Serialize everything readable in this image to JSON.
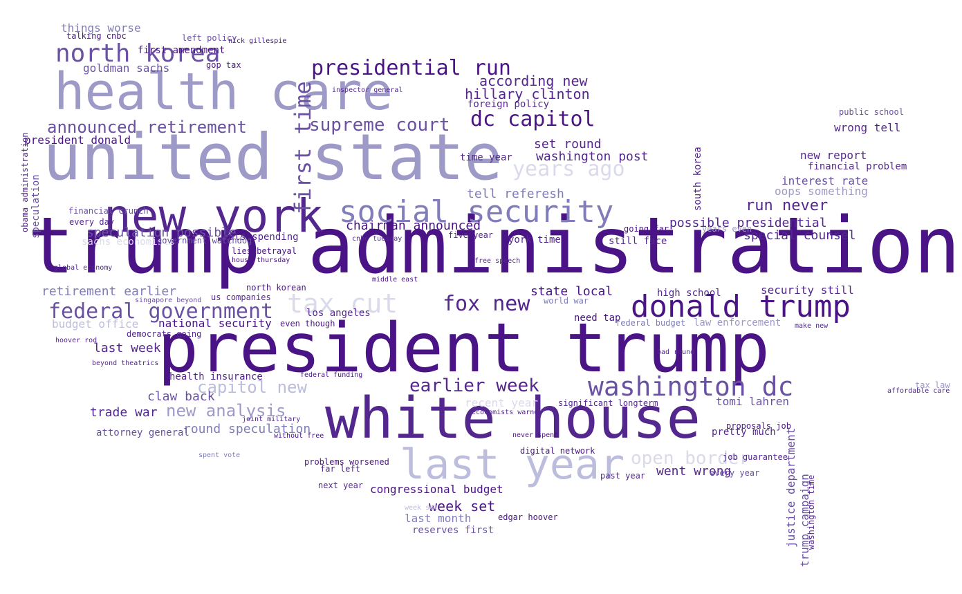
{
  "palette": {
    "dark": "#4a1486",
    "deep": "#54278f",
    "mid": "#6a51a3",
    "soft": "#807dba",
    "light": "#9e9ac8",
    "pale": "#bcbddc",
    "faint": "#dadaeb"
  },
  "words": [
    {
      "text": "trump administration"
    },
    {
      "text": "president trump"
    },
    {
      "text": "united state"
    },
    {
      "text": "health care"
    },
    {
      "text": "white house"
    },
    {
      "text": "new york"
    },
    {
      "text": "social security"
    },
    {
      "text": "donald trump"
    },
    {
      "text": "federal government"
    },
    {
      "text": "last year"
    },
    {
      "text": "north korea"
    },
    {
      "text": "washington dc"
    },
    {
      "text": "presidential run"
    },
    {
      "text": "dc capitol"
    },
    {
      "text": "supreme court"
    },
    {
      "text": "announced retirement"
    },
    {
      "text": "first time"
    },
    {
      "text": "fox new"
    },
    {
      "text": "tax cut"
    },
    {
      "text": "years ago"
    },
    {
      "text": "earlier week"
    },
    {
      "text": "new analysis"
    },
    {
      "text": "open border"
    },
    {
      "text": "capitol new"
    },
    {
      "text": "round speculation"
    },
    {
      "text": "possible presidential"
    },
    {
      "text": "run never"
    },
    {
      "text": "chairman announced"
    },
    {
      "text": "according new"
    },
    {
      "text": "hillary clinton"
    },
    {
      "text": "set round"
    },
    {
      "text": "washington post"
    },
    {
      "text": "tell referesh"
    },
    {
      "text": "goldman sachs"
    },
    {
      "text": "president donald"
    },
    {
      "text": "week set"
    },
    {
      "text": "congressional budget"
    },
    {
      "text": "trade war"
    },
    {
      "text": "claw back"
    },
    {
      "text": "last week"
    },
    {
      "text": "health insurance"
    },
    {
      "text": "national security"
    },
    {
      "text": "retirement earlier"
    },
    {
      "text": "speculation possible"
    },
    {
      "text": "cuts spending"
    },
    {
      "text": "state local"
    },
    {
      "text": "special counsel"
    },
    {
      "text": "interest rate"
    },
    {
      "text": "financial problem"
    },
    {
      "text": "new report"
    },
    {
      "text": "wrong tell"
    },
    {
      "text": "oops something"
    },
    {
      "text": "security still"
    },
    {
      "text": "went wrong"
    },
    {
      "text": "pretty much"
    },
    {
      "text": "tomi lahren"
    },
    {
      "text": "things worse"
    },
    {
      "text": "first amendment"
    },
    {
      "text": "talking cnbc"
    },
    {
      "text": "time year"
    },
    {
      "text": "foreign policy"
    },
    {
      "text": "york time"
    },
    {
      "text": "still face"
    },
    {
      "text": "need tap"
    },
    {
      "text": "high school"
    },
    {
      "text": "budget office"
    },
    {
      "text": "last month"
    },
    {
      "text": "next year"
    },
    {
      "text": "past year"
    },
    {
      "text": "attorney general"
    },
    {
      "text": "los angeles"
    },
    {
      "text": "north korean"
    },
    {
      "text": "us companies"
    },
    {
      "text": "financial crunch"
    },
    {
      "text": "speculation"
    },
    {
      "text": "global economy"
    },
    {
      "text": "even though"
    },
    {
      "text": "proposals job"
    },
    {
      "text": "trump campaign"
    },
    {
      "text": "justice department"
    },
    {
      "text": "public school"
    },
    {
      "text": "digital network"
    },
    {
      "text": "edgar hoover"
    },
    {
      "text": "significant longterm"
    },
    {
      "text": "five year"
    },
    {
      "text": "reserves first"
    },
    {
      "text": "without free"
    },
    {
      "text": "far left"
    },
    {
      "text": "every year"
    },
    {
      "text": "job guarantee"
    },
    {
      "text": "week set"
    },
    {
      "text": "recent year"
    },
    {
      "text": "sachs economists"
    },
    {
      "text": "obama administration"
    },
    {
      "text": "washington time"
    },
    {
      "text": "south korea"
    },
    {
      "text": "federal budget"
    },
    {
      "text": "law enforcement"
    },
    {
      "text": "problems worsened"
    },
    {
      "text": "house thursday"
    },
    {
      "text": "middle east"
    },
    {
      "text": "spent vote"
    },
    {
      "text": "make new"
    },
    {
      "text": "democrats going"
    },
    {
      "text": "hoover rod"
    },
    {
      "text": "beyond theatrics"
    },
    {
      "text": "bad round"
    },
    {
      "text": "inspector general"
    },
    {
      "text": "gop tax"
    },
    {
      "text": "left policy"
    },
    {
      "text": "world war"
    },
    {
      "text": "cnbc tuesday"
    },
    {
      "text": "government watchdog"
    },
    {
      "text": "federal funding"
    },
    {
      "text": "lies betrayal"
    },
    {
      "text": "every day"
    },
    {
      "text": "free speech"
    },
    {
      "text": "going far"
    },
    {
      "text": "years even"
    },
    {
      "text": "nick gillespie"
    },
    {
      "text": "singapore beyond"
    },
    {
      "text": "affordable care"
    },
    {
      "text": "tax law"
    },
    {
      "text": "joint military"
    },
    {
      "text": "never spent"
    },
    {
      "text": "economists warned"
    }
  ]
}
